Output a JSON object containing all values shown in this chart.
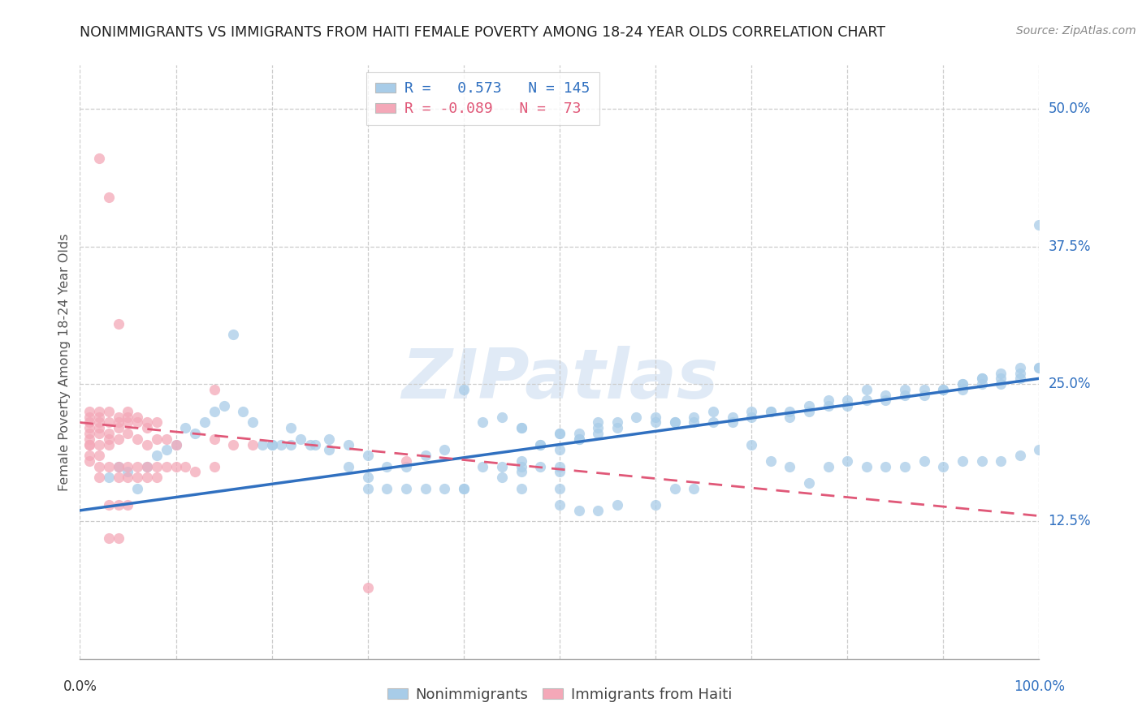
{
  "title": "NONIMMIGRANTS VS IMMIGRANTS FROM HAITI FEMALE POVERTY AMONG 18-24 YEAR OLDS CORRELATION CHART",
  "source": "Source: ZipAtlas.com",
  "ylabel": "Female Poverty Among 18-24 Year Olds",
  "yticks": [
    0.125,
    0.25,
    0.375,
    0.5
  ],
  "ytick_labels": [
    "12.5%",
    "25.0%",
    "37.5%",
    "50.0%"
  ],
  "blue_R": 0.573,
  "blue_N": 145,
  "pink_R": -0.089,
  "pink_N": 73,
  "blue_color": "#a8cce8",
  "pink_color": "#f4a8b8",
  "blue_line_color": "#3070c0",
  "pink_line_color": "#e05878",
  "watermark_text": "ZIPatlas",
  "legend_blue_label": "Nonimmigrants",
  "legend_pink_label": "Immigrants from Haiti",
  "blue_scatter": [
    [
      0.03,
      0.165
    ],
    [
      0.04,
      0.175
    ],
    [
      0.05,
      0.17
    ],
    [
      0.06,
      0.155
    ],
    [
      0.07,
      0.175
    ],
    [
      0.08,
      0.185
    ],
    [
      0.09,
      0.19
    ],
    [
      0.1,
      0.195
    ],
    [
      0.11,
      0.21
    ],
    [
      0.12,
      0.205
    ],
    [
      0.13,
      0.215
    ],
    [
      0.14,
      0.225
    ],
    [
      0.15,
      0.23
    ],
    [
      0.16,
      0.295
    ],
    [
      0.17,
      0.225
    ],
    [
      0.18,
      0.215
    ],
    [
      0.19,
      0.195
    ],
    [
      0.2,
      0.195
    ],
    [
      0.21,
      0.195
    ],
    [
      0.22,
      0.21
    ],
    [
      0.23,
      0.2
    ],
    [
      0.245,
      0.195
    ],
    [
      0.26,
      0.2
    ],
    [
      0.28,
      0.195
    ],
    [
      0.3,
      0.185
    ],
    [
      0.32,
      0.175
    ],
    [
      0.34,
      0.175
    ],
    [
      0.36,
      0.185
    ],
    [
      0.38,
      0.19
    ],
    [
      0.4,
      0.245
    ],
    [
      0.42,
      0.215
    ],
    [
      0.44,
      0.22
    ],
    [
      0.46,
      0.21
    ],
    [
      0.46,
      0.21
    ],
    [
      0.48,
      0.195
    ],
    [
      0.48,
      0.195
    ],
    [
      0.5,
      0.19
    ],
    [
      0.5,
      0.205
    ],
    [
      0.5,
      0.205
    ],
    [
      0.52,
      0.2
    ],
    [
      0.52,
      0.205
    ],
    [
      0.52,
      0.2
    ],
    [
      0.54,
      0.205
    ],
    [
      0.54,
      0.215
    ],
    [
      0.54,
      0.21
    ],
    [
      0.56,
      0.21
    ],
    [
      0.56,
      0.215
    ],
    [
      0.58,
      0.22
    ],
    [
      0.6,
      0.215
    ],
    [
      0.6,
      0.22
    ],
    [
      0.62,
      0.215
    ],
    [
      0.62,
      0.215
    ],
    [
      0.64,
      0.22
    ],
    [
      0.64,
      0.215
    ],
    [
      0.66,
      0.215
    ],
    [
      0.66,
      0.225
    ],
    [
      0.68,
      0.215
    ],
    [
      0.68,
      0.22
    ],
    [
      0.7,
      0.22
    ],
    [
      0.7,
      0.225
    ],
    [
      0.72,
      0.225
    ],
    [
      0.72,
      0.225
    ],
    [
      0.74,
      0.225
    ],
    [
      0.74,
      0.22
    ],
    [
      0.76,
      0.225
    ],
    [
      0.76,
      0.23
    ],
    [
      0.78,
      0.23
    ],
    [
      0.78,
      0.235
    ],
    [
      0.8,
      0.23
    ],
    [
      0.8,
      0.235
    ],
    [
      0.82,
      0.235
    ],
    [
      0.82,
      0.245
    ],
    [
      0.84,
      0.24
    ],
    [
      0.84,
      0.235
    ],
    [
      0.86,
      0.24
    ],
    [
      0.86,
      0.245
    ],
    [
      0.88,
      0.24
    ],
    [
      0.88,
      0.245
    ],
    [
      0.9,
      0.245
    ],
    [
      0.9,
      0.245
    ],
    [
      0.92,
      0.245
    ],
    [
      0.92,
      0.25
    ],
    [
      0.92,
      0.25
    ],
    [
      0.94,
      0.25
    ],
    [
      0.94,
      0.255
    ],
    [
      0.94,
      0.255
    ],
    [
      0.96,
      0.255
    ],
    [
      0.96,
      0.26
    ],
    [
      0.96,
      0.25
    ],
    [
      0.98,
      0.26
    ],
    [
      0.98,
      0.255
    ],
    [
      0.98,
      0.265
    ],
    [
      1.0,
      0.265
    ],
    [
      1.0,
      0.265
    ],
    [
      1.0,
      0.395
    ],
    [
      0.42,
      0.175
    ],
    [
      0.44,
      0.175
    ],
    [
      0.46,
      0.175
    ],
    [
      0.46,
      0.18
    ],
    [
      0.46,
      0.17
    ],
    [
      0.48,
      0.175
    ],
    [
      0.5,
      0.175
    ],
    [
      0.5,
      0.17
    ],
    [
      0.44,
      0.165
    ],
    [
      0.46,
      0.155
    ],
    [
      0.3,
      0.165
    ],
    [
      0.3,
      0.155
    ],
    [
      0.32,
      0.155
    ],
    [
      0.34,
      0.155
    ],
    [
      0.36,
      0.155
    ],
    [
      0.38,
      0.155
    ],
    [
      0.2,
      0.195
    ],
    [
      0.22,
      0.195
    ],
    [
      0.24,
      0.195
    ],
    [
      0.26,
      0.19
    ],
    [
      0.28,
      0.175
    ],
    [
      0.5,
      0.155
    ],
    [
      0.5,
      0.14
    ],
    [
      0.52,
      0.135
    ],
    [
      0.54,
      0.135
    ],
    [
      0.56,
      0.14
    ],
    [
      0.6,
      0.14
    ],
    [
      0.4,
      0.155
    ],
    [
      0.4,
      0.155
    ],
    [
      0.62,
      0.155
    ],
    [
      0.64,
      0.155
    ],
    [
      0.7,
      0.195
    ],
    [
      0.72,
      0.18
    ],
    [
      0.74,
      0.175
    ],
    [
      0.76,
      0.16
    ],
    [
      0.78,
      0.175
    ],
    [
      0.8,
      0.18
    ],
    [
      0.82,
      0.175
    ],
    [
      0.84,
      0.175
    ],
    [
      0.86,
      0.175
    ],
    [
      0.88,
      0.18
    ],
    [
      0.9,
      0.175
    ],
    [
      0.92,
      0.18
    ],
    [
      0.94,
      0.18
    ],
    [
      0.96,
      0.18
    ],
    [
      0.98,
      0.185
    ],
    [
      1.0,
      0.19
    ]
  ],
  "pink_scatter": [
    [
      0.01,
      0.22
    ],
    [
      0.01,
      0.225
    ],
    [
      0.01,
      0.215
    ],
    [
      0.01,
      0.21
    ],
    [
      0.01,
      0.205
    ],
    [
      0.01,
      0.2
    ],
    [
      0.01,
      0.195
    ],
    [
      0.01,
      0.195
    ],
    [
      0.01,
      0.185
    ],
    [
      0.01,
      0.18
    ],
    [
      0.02,
      0.225
    ],
    [
      0.02,
      0.22
    ],
    [
      0.02,
      0.215
    ],
    [
      0.02,
      0.21
    ],
    [
      0.02,
      0.205
    ],
    [
      0.02,
      0.195
    ],
    [
      0.02,
      0.185
    ],
    [
      0.02,
      0.175
    ],
    [
      0.02,
      0.165
    ],
    [
      0.02,
      0.455
    ],
    [
      0.03,
      0.42
    ],
    [
      0.03,
      0.225
    ],
    [
      0.03,
      0.215
    ],
    [
      0.03,
      0.205
    ],
    [
      0.03,
      0.2
    ],
    [
      0.03,
      0.195
    ],
    [
      0.03,
      0.175
    ],
    [
      0.03,
      0.14
    ],
    [
      0.03,
      0.11
    ],
    [
      0.04,
      0.305
    ],
    [
      0.04,
      0.22
    ],
    [
      0.04,
      0.215
    ],
    [
      0.04,
      0.21
    ],
    [
      0.04,
      0.2
    ],
    [
      0.04,
      0.175
    ],
    [
      0.04,
      0.165
    ],
    [
      0.04,
      0.14
    ],
    [
      0.04,
      0.11
    ],
    [
      0.05,
      0.225
    ],
    [
      0.05,
      0.22
    ],
    [
      0.05,
      0.215
    ],
    [
      0.05,
      0.205
    ],
    [
      0.05,
      0.175
    ],
    [
      0.05,
      0.165
    ],
    [
      0.05,
      0.14
    ],
    [
      0.06,
      0.22
    ],
    [
      0.06,
      0.215
    ],
    [
      0.06,
      0.2
    ],
    [
      0.06,
      0.175
    ],
    [
      0.06,
      0.165
    ],
    [
      0.07,
      0.215
    ],
    [
      0.07,
      0.21
    ],
    [
      0.07,
      0.195
    ],
    [
      0.07,
      0.175
    ],
    [
      0.07,
      0.165
    ],
    [
      0.08,
      0.215
    ],
    [
      0.08,
      0.2
    ],
    [
      0.08,
      0.175
    ],
    [
      0.08,
      0.165
    ],
    [
      0.09,
      0.2
    ],
    [
      0.09,
      0.175
    ],
    [
      0.1,
      0.195
    ],
    [
      0.1,
      0.175
    ],
    [
      0.11,
      0.175
    ],
    [
      0.12,
      0.17
    ],
    [
      0.14,
      0.245
    ],
    [
      0.14,
      0.2
    ],
    [
      0.14,
      0.175
    ],
    [
      0.16,
      0.195
    ],
    [
      0.18,
      0.195
    ],
    [
      0.3,
      0.065
    ],
    [
      0.34,
      0.18
    ]
  ],
  "blue_line_y_start": 0.135,
  "blue_line_y_end": 0.255,
  "pink_line_y_start": 0.215,
  "pink_line_y_end": 0.13,
  "ymin": 0.0,
  "ymax": 0.54,
  "xmin": 0.0,
  "xmax": 1.0
}
